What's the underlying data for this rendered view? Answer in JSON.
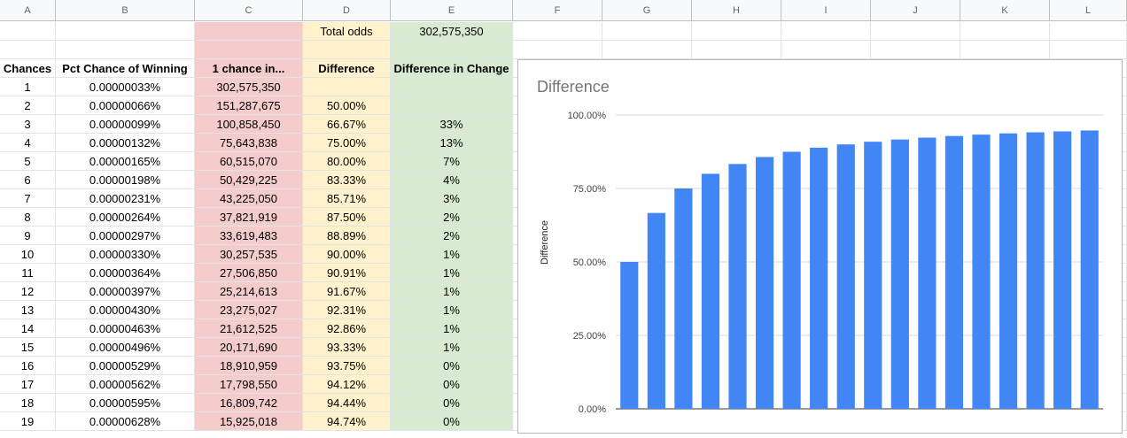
{
  "columns": [
    "A",
    "B",
    "C",
    "D",
    "E",
    "F",
    "G",
    "H",
    "I",
    "J",
    "K",
    "L"
  ],
  "top": {
    "total_odds_label": "Total odds",
    "total_odds_value": "302,575,350"
  },
  "headers": {
    "chances": "Chances",
    "pct": "Pct Chance of Winning",
    "one_chance": "1 chance in...",
    "difference": "Difference",
    "diff_change": "Difference in Change"
  },
  "rows": [
    {
      "n": "1",
      "pct": "0.00000033%",
      "one": "302,575,350",
      "diff": "",
      "chg": ""
    },
    {
      "n": "2",
      "pct": "0.00000066%",
      "one": "151,287,675",
      "diff": "50.00%",
      "chg": ""
    },
    {
      "n": "3",
      "pct": "0.00000099%",
      "one": "100,858,450",
      "diff": "66.67%",
      "chg": "33%"
    },
    {
      "n": "4",
      "pct": "0.00000132%",
      "one": "75,643,838",
      "diff": "75.00%",
      "chg": "13%"
    },
    {
      "n": "5",
      "pct": "0.00000165%",
      "one": "60,515,070",
      "diff": "80.00%",
      "chg": "7%"
    },
    {
      "n": "6",
      "pct": "0.00000198%",
      "one": "50,429,225",
      "diff": "83.33%",
      "chg": "4%"
    },
    {
      "n": "7",
      "pct": "0.00000231%",
      "one": "43,225,050",
      "diff": "85.71%",
      "chg": "3%"
    },
    {
      "n": "8",
      "pct": "0.00000264%",
      "one": "37,821,919",
      "diff": "87.50%",
      "chg": "2%"
    },
    {
      "n": "9",
      "pct": "0.00000297%",
      "one": "33,619,483",
      "diff": "88.89%",
      "chg": "2%"
    },
    {
      "n": "10",
      "pct": "0.00000330%",
      "one": "30,257,535",
      "diff": "90.00%",
      "chg": "1%"
    },
    {
      "n": "11",
      "pct": "0.00000364%",
      "one": "27,506,850",
      "diff": "90.91%",
      "chg": "1%"
    },
    {
      "n": "12",
      "pct": "0.00000397%",
      "one": "25,214,613",
      "diff": "91.67%",
      "chg": "1%"
    },
    {
      "n": "13",
      "pct": "0.00000430%",
      "one": "23,275,027",
      "diff": "92.31%",
      "chg": "1%"
    },
    {
      "n": "14",
      "pct": "0.00000463%",
      "one": "21,612,525",
      "diff": "92.86%",
      "chg": "1%"
    },
    {
      "n": "15",
      "pct": "0.00000496%",
      "one": "20,171,690",
      "diff": "93.33%",
      "chg": "1%"
    },
    {
      "n": "16",
      "pct": "0.00000529%",
      "one": "18,910,959",
      "diff": "93.75%",
      "chg": "0%"
    },
    {
      "n": "17",
      "pct": "0.00000562%",
      "one": "17,798,550",
      "diff": "94.12%",
      "chg": "0%"
    },
    {
      "n": "18",
      "pct": "0.00000595%",
      "one": "16,809,742",
      "diff": "94.44%",
      "chg": "0%"
    },
    {
      "n": "19",
      "pct": "0.00000628%",
      "one": "15,925,018",
      "diff": "94.74%",
      "chg": "0%"
    }
  ],
  "colors": {
    "red_fill": "#f4cccc",
    "yellow_fill": "#fff2cc",
    "green_fill": "#d9ead3",
    "bar": "#4285f4",
    "gridline": "#dadada"
  },
  "chart_data": {
    "type": "bar",
    "title": "Difference",
    "ylabel": "Difference",
    "xlabel": "",
    "ylim": [
      0,
      100
    ],
    "yticks": [
      "0.00%",
      "25.00%",
      "50.00%",
      "75.00%",
      "100.00%"
    ],
    "ytick_values": [
      0,
      25,
      50,
      75,
      100
    ],
    "values": [
      50.0,
      66.67,
      75.0,
      80.0,
      83.33,
      85.71,
      87.5,
      88.89,
      90.0,
      90.91,
      91.67,
      92.31,
      92.86,
      93.33,
      93.75,
      94.12,
      94.44,
      94.74
    ],
    "grid": true
  }
}
